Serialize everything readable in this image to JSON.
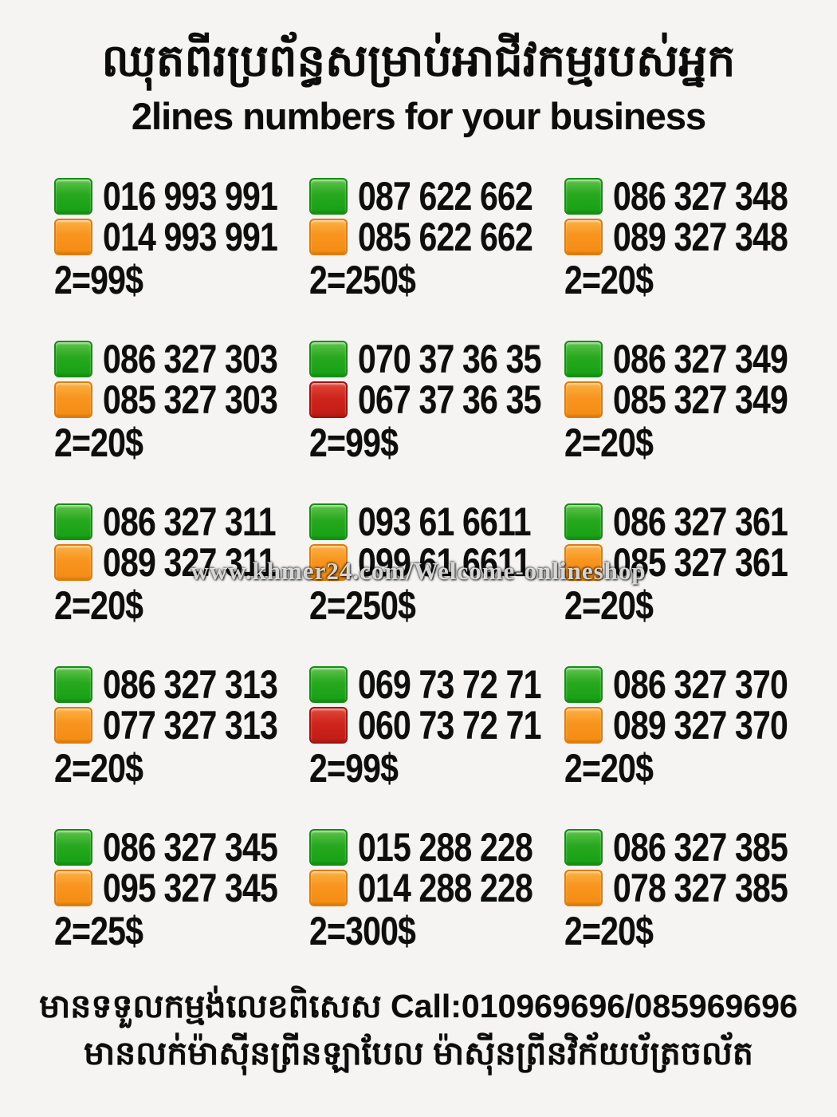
{
  "title_khmer": "ឈុតពីរប្រព័ន្ធសម្រាប់អាជីវកម្មរបស់អ្នក",
  "subtitle": "2lines numbers for your business",
  "watermark": "www.khmer24.com/Welcome-onlineshop",
  "colors": {
    "green": "#27a81f",
    "orange": "#f8941e",
    "red": "#cf241c",
    "background": "#f5f4f3",
    "text": "#0e0e0e"
  },
  "listings": [
    {
      "lines": [
        {
          "color": "green",
          "number": "016 993 991"
        },
        {
          "color": "orange",
          "number": "014 993 991"
        }
      ],
      "price": "2=99$"
    },
    {
      "lines": [
        {
          "color": "green",
          "number": "087 622 662"
        },
        {
          "color": "orange",
          "number": "085 622 662"
        }
      ],
      "price": "2=250$"
    },
    {
      "lines": [
        {
          "color": "green",
          "number": "086 327 348"
        },
        {
          "color": "orange",
          "number": "089 327 348"
        }
      ],
      "price": "2=20$"
    },
    {
      "lines": [
        {
          "color": "green",
          "number": "086 327 303"
        },
        {
          "color": "orange",
          "number": "085 327 303"
        }
      ],
      "price": "2=20$"
    },
    {
      "lines": [
        {
          "color": "green",
          "number": "070 37 36 35"
        },
        {
          "color": "red",
          "number": "067 37 36 35"
        }
      ],
      "price": "2=99$"
    },
    {
      "lines": [
        {
          "color": "green",
          "number": "086 327 349"
        },
        {
          "color": "orange",
          "number": "085 327 349"
        }
      ],
      "price": "2=20$"
    },
    {
      "lines": [
        {
          "color": "green",
          "number": "086 327 311"
        },
        {
          "color": "orange",
          "number": "089 327 311"
        }
      ],
      "price": "2=20$"
    },
    {
      "lines": [
        {
          "color": "green",
          "number": "093 61 6611"
        },
        {
          "color": "orange",
          "number": "099 61 6611"
        }
      ],
      "price": "2=250$"
    },
    {
      "lines": [
        {
          "color": "green",
          "number": "086 327 361"
        },
        {
          "color": "orange",
          "number": "085 327 361"
        }
      ],
      "price": "2=20$"
    },
    {
      "lines": [
        {
          "color": "green",
          "number": "086 327 313"
        },
        {
          "color": "orange",
          "number": "077 327 313"
        }
      ],
      "price": "2=20$"
    },
    {
      "lines": [
        {
          "color": "green",
          "number": "069 73 72 71"
        },
        {
          "color": "red",
          "number": "060 73 72 71"
        }
      ],
      "price": "2=99$"
    },
    {
      "lines": [
        {
          "color": "green",
          "number": "086 327 370"
        },
        {
          "color": "orange",
          "number": "089 327 370"
        }
      ],
      "price": "2=20$"
    },
    {
      "lines": [
        {
          "color": "green",
          "number": "086 327 345"
        },
        {
          "color": "orange",
          "number": "095 327 345"
        }
      ],
      "price": "2=25$"
    },
    {
      "lines": [
        {
          "color": "green",
          "number": "015 288 228"
        },
        {
          "color": "orange",
          "number": "014 288 228"
        }
      ],
      "price": "2=300$"
    },
    {
      "lines": [
        {
          "color": "green",
          "number": "086 327 385"
        },
        {
          "color": "orange",
          "number": "078 327 385"
        }
      ],
      "price": "2=20$"
    }
  ],
  "footer": {
    "line1": "មានទទួលកម្មង់លេខពិសេស Call:010969696/085969696",
    "line2": "មានលក់ម៉ាស៊ីនព្រីនឡាបែល ម៉ាស៊ីនព្រីនវិក័យប័ត្រចល័ត"
  }
}
